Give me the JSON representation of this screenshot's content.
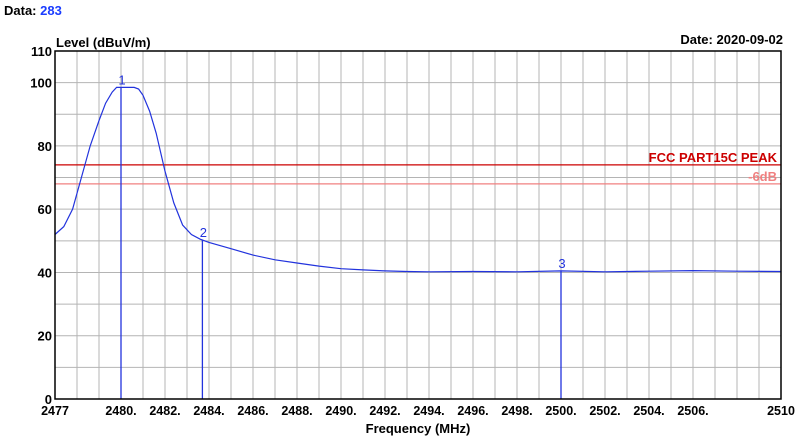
{
  "header": {
    "data_label": "Data:",
    "data_value": "283",
    "date_label": "Date:",
    "date_value": "2020-09-02"
  },
  "chart_data": {
    "type": "line",
    "ylabel": "Level (dBuV/m)",
    "xlabel": "Frequency (MHz)",
    "ylim": [
      0,
      110
    ],
    "xlim": [
      2477,
      2510
    ],
    "yticks": [
      0,
      20,
      40,
      60,
      80,
      100,
      110
    ],
    "xtick_values": [
      2477,
      2480,
      2482,
      2484,
      2486,
      2488,
      2490,
      2492,
      2494,
      2496,
      2498,
      2500,
      2502,
      2504,
      2506,
      2510
    ],
    "xtick_labels": [
      "2477",
      "2480.",
      "2482.",
      "2484.",
      "2486.",
      "2488.",
      "2490.",
      "2492.",
      "2494.",
      "2496.",
      "2498.",
      "2500.",
      "2502.",
      "2504.",
      "2506.",
      "2510"
    ],
    "grid": true,
    "limit_lines": [
      {
        "label": "FCC PART15C PEAK",
        "value": 74,
        "color": "#cc0000"
      },
      {
        "label": "-6dB",
        "value": 68,
        "color": "#f08080"
      }
    ],
    "markers": [
      {
        "id": "1",
        "x": 2480.0,
        "y": 98.5
      },
      {
        "id": "2",
        "x": 2483.7,
        "y": 50.2
      },
      {
        "id": "3",
        "x": 2500.0,
        "y": 40.5
      }
    ],
    "series": [
      {
        "color": "#2233dd",
        "x": [
          2477.0,
          2477.4,
          2477.8,
          2478.2,
          2478.6,
          2479.0,
          2479.3,
          2479.6,
          2479.8,
          2480.0,
          2480.3,
          2480.6,
          2480.8,
          2481.0,
          2481.3,
          2481.6,
          2482.0,
          2482.4,
          2482.8,
          2483.2,
          2483.6,
          2484.0,
          2485.0,
          2486.0,
          2487.0,
          2488.0,
          2489.0,
          2490.0,
          2491.0,
          2492.0,
          2493.0,
          2494.0,
          2496.0,
          2498.0,
          2500.0,
          2502.0,
          2504.0,
          2506.0,
          2508.0,
          2510.0
        ],
        "y": [
          52.0,
          54.5,
          60.0,
          70.0,
          80.0,
          88.0,
          93.5,
          97.0,
          98.5,
          98.5,
          98.5,
          98.5,
          98.0,
          96.0,
          91.0,
          84.0,
          72.0,
          62.0,
          55.0,
          52.0,
          50.5,
          49.5,
          47.5,
          45.5,
          44.0,
          43.0,
          42.0,
          41.2,
          40.8,
          40.5,
          40.3,
          40.2,
          40.3,
          40.2,
          40.5,
          40.2,
          40.4,
          40.6,
          40.4,
          40.3
        ]
      }
    ]
  }
}
